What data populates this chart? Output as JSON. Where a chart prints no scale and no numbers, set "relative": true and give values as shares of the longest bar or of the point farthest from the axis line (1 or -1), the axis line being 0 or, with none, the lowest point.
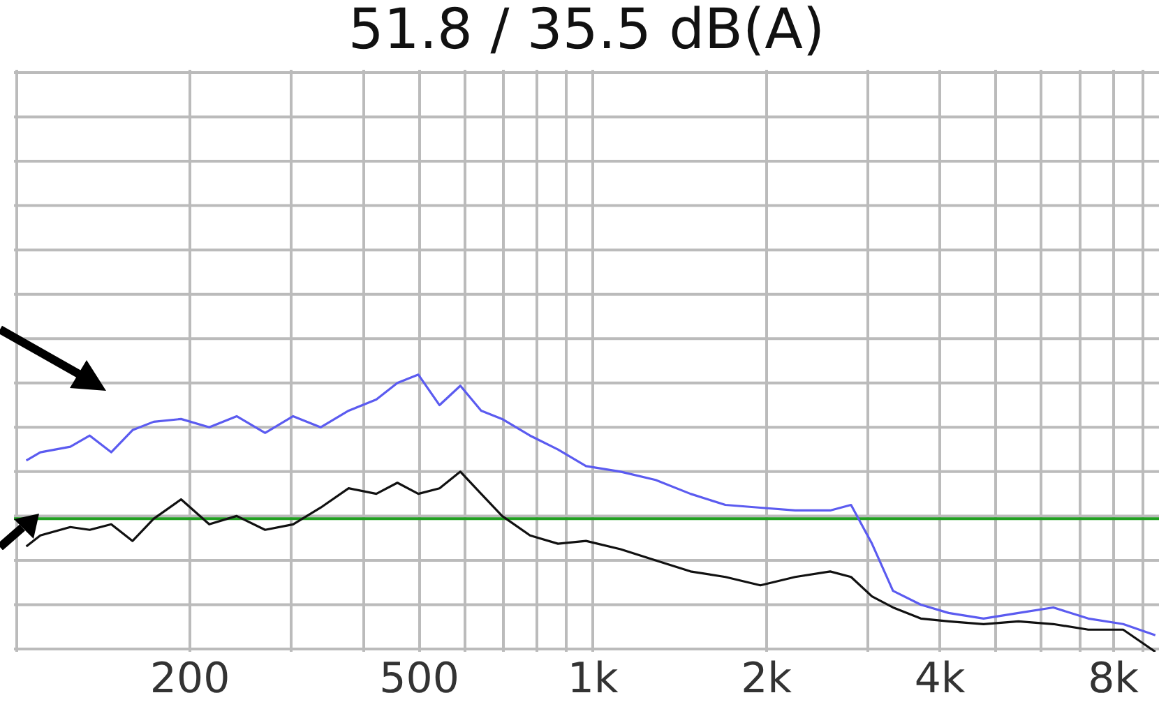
{
  "chart_data": {
    "type": "line",
    "title": "51.8 / 35.5 dB(A)",
    "relative": true,
    "log": "x",
    "grid": true,
    "legend": false,
    "x": [
      104,
      110,
      124,
      134,
      146,
      159,
      173,
      193,
      216,
      241,
      270,
      302,
      337,
      377,
      421,
      458,
      498,
      542,
      589,
      640,
      696,
      778,
      870,
      973,
      1117,
      1285,
      1477,
      1698,
      1953,
      2244,
      2581,
      2805,
      3050,
      3317,
      3707,
      4143,
      4763,
      5475,
      6294,
      7236,
      8319,
      9460
    ],
    "xlim": [
      99,
      9600
    ],
    "xticks": [
      {
        "value": 100,
        "label": null
      },
      {
        "value": 200,
        "label": "200"
      },
      {
        "value": 300,
        "label": null
      },
      {
        "value": 400,
        "label": null
      },
      {
        "value": 500,
        "label": "500"
      },
      {
        "value": 600,
        "label": null
      },
      {
        "value": 700,
        "label": null
      },
      {
        "value": 800,
        "label": null
      },
      {
        "value": 900,
        "label": null
      },
      {
        "value": 1000,
        "label": "1k"
      },
      {
        "value": 2000,
        "label": "2k"
      },
      {
        "value": 3000,
        "label": null
      },
      {
        "value": 4000,
        "label": "4k"
      },
      {
        "value": 5000,
        "label": null
      },
      {
        "value": 6000,
        "label": null
      },
      {
        "value": 7000,
        "label": null
      },
      {
        "value": 8000,
        "label": "8k"
      },
      {
        "value": 9000,
        "label": null
      }
    ],
    "series": [
      {
        "color": "#5b5bf0",
        "values": [
          0.69,
          0.72,
          0.74,
          0.78,
          0.72,
          0.8,
          0.83,
          0.84,
          0.81,
          0.85,
          0.79,
          0.85,
          0.81,
          0.87,
          0.91,
          0.97,
          1,
          0.89,
          0.96,
          0.87,
          0.84,
          0.78,
          0.73,
          0.67,
          0.65,
          0.62,
          0.57,
          0.53,
          0.52,
          0.51,
          0.51,
          0.53,
          0.39,
          0.22,
          0.17,
          0.14,
          0.12,
          0.14,
          0.16,
          0.12,
          0.1,
          0.06
        ]
      },
      {
        "color": "#111111",
        "values": [
          0.38,
          0.42,
          0.45,
          0.44,
          0.46,
          0.4,
          0.48,
          0.55,
          0.46,
          0.49,
          0.44,
          0.46,
          0.52,
          0.59,
          0.57,
          0.61,
          0.57,
          0.59,
          0.65,
          0.57,
          0.49,
          0.42,
          0.39,
          0.4,
          0.37,
          0.33,
          0.29,
          0.27,
          0.24,
          0.27,
          0.29,
          0.27,
          0.2,
          0.16,
          0.12,
          0.11,
          0.1,
          0.11,
          0.1,
          0.08,
          0.08,
          0
        ]
      }
    ],
    "ref_lines": [
      {
        "axis": "y",
        "value": 0.48,
        "color": "#22a022"
      }
    ]
  }
}
